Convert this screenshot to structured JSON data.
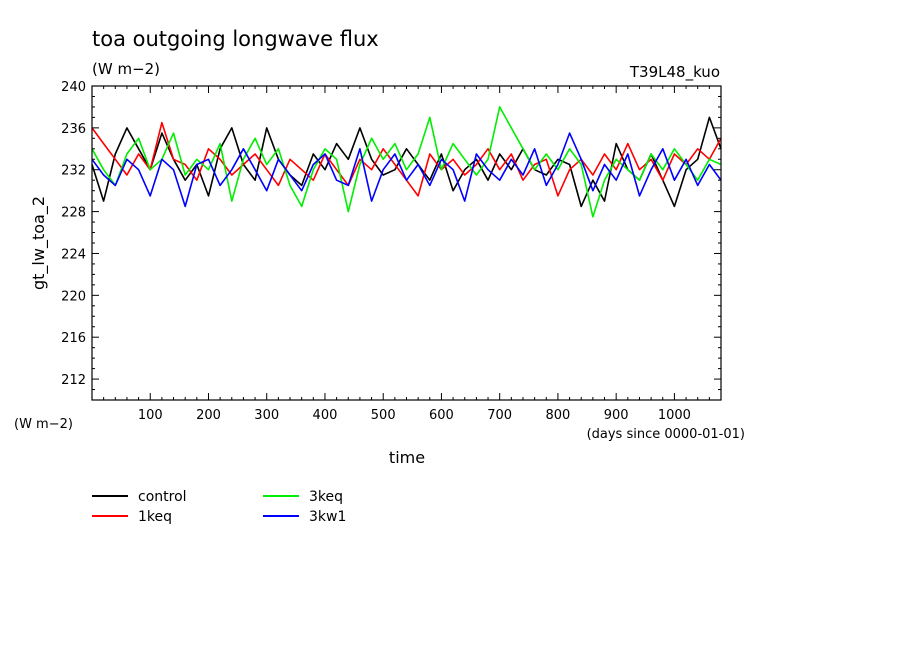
{
  "chart_data": {
    "type": "line",
    "title": "toa outgoing longwave flux",
    "title_units": "(W m−2)",
    "run_label": "T39L48_kuo",
    "xlabel": "time",
    "xlabel_units": "(days since 0000-01-01)",
    "ylabel": "gt_lw_toa_2",
    "ylabel_units": "(W m−2)",
    "xlim": [
      0,
      1080
    ],
    "ylim": [
      210,
      240
    ],
    "x_ticks": [
      100,
      200,
      300,
      400,
      500,
      600,
      700,
      800,
      900,
      1000
    ],
    "y_ticks": [
      212,
      216,
      220,
      224,
      228,
      232,
      236,
      240
    ],
    "legend_position": "bottom-left",
    "series": [
      {
        "name": "control",
        "color": "#000000",
        "x": [
          0,
          20,
          40,
          60,
          80,
          100,
          120,
          140,
          160,
          180,
          200,
          220,
          240,
          260,
          280,
          300,
          320,
          340,
          360,
          380,
          400,
          420,
          440,
          460,
          480,
          500,
          520,
          540,
          560,
          580,
          600,
          620,
          640,
          660,
          680,
          700,
          720,
          740,
          760,
          780,
          800,
          820,
          840,
          860,
          880,
          900,
          920,
          940,
          960,
          980,
          1000,
          1020,
          1040,
          1060,
          1080
        ],
        "y": [
          232.5,
          229.0,
          233.5,
          236.0,
          234.0,
          232.0,
          235.5,
          233.0,
          231.0,
          232.5,
          229.5,
          234.0,
          236.0,
          232.5,
          231.0,
          236.0,
          233.0,
          231.5,
          230.5,
          233.5,
          232.0,
          234.5,
          233.0,
          236.0,
          233.0,
          231.5,
          232.0,
          234.0,
          232.5,
          231.0,
          233.5,
          230.0,
          232.0,
          233.0,
          231.0,
          233.5,
          232.0,
          234.0,
          232.0,
          231.5,
          233.0,
          232.5,
          228.5,
          231.0,
          229.0,
          234.5,
          232.0,
          231.0,
          233.5,
          231.0,
          228.5,
          232.0,
          233.0,
          237.0,
          234.0
        ]
      },
      {
        "name": "1keq",
        "color": "#ff0000",
        "x": [
          0,
          20,
          40,
          60,
          80,
          100,
          120,
          140,
          160,
          180,
          200,
          220,
          240,
          260,
          280,
          300,
          320,
          340,
          360,
          380,
          400,
          420,
          440,
          460,
          480,
          500,
          520,
          540,
          560,
          580,
          600,
          620,
          640,
          660,
          680,
          700,
          720,
          740,
          760,
          780,
          800,
          820,
          840,
          860,
          880,
          900,
          920,
          940,
          960,
          980,
          1000,
          1020,
          1040,
          1060,
          1080
        ],
        "y": [
          236.0,
          234.5,
          233.0,
          231.5,
          233.5,
          232.0,
          236.5,
          233.0,
          232.5,
          231.0,
          234.0,
          233.0,
          231.5,
          232.5,
          233.5,
          232.0,
          230.5,
          233.0,
          232.0,
          231.0,
          233.5,
          232.0,
          230.5,
          233.0,
          232.0,
          234.0,
          232.5,
          231.0,
          229.5,
          233.5,
          232.0,
          233.0,
          231.5,
          232.5,
          234.0,
          232.0,
          233.5,
          231.0,
          232.5,
          233.0,
          229.5,
          232.0,
          233.0,
          231.5,
          233.5,
          232.0,
          234.5,
          232.0,
          233.0,
          231.0,
          233.5,
          232.5,
          234.0,
          233.0,
          235.0
        ]
      },
      {
        "name": "3keq",
        "color": "#00ee00",
        "x": [
          0,
          20,
          40,
          60,
          80,
          100,
          120,
          140,
          160,
          180,
          200,
          220,
          240,
          260,
          280,
          300,
          320,
          340,
          360,
          380,
          400,
          420,
          440,
          460,
          480,
          500,
          520,
          540,
          560,
          580,
          600,
          620,
          640,
          660,
          680,
          700,
          720,
          740,
          760,
          780,
          800,
          820,
          840,
          860,
          880,
          900,
          920,
          940,
          960,
          980,
          1000,
          1020,
          1040,
          1060,
          1080
        ],
        "y": [
          234.0,
          232.0,
          230.5,
          233.5,
          235.0,
          232.0,
          233.0,
          235.5,
          231.5,
          233.0,
          232.0,
          234.5,
          229.0,
          233.0,
          235.0,
          232.5,
          234.0,
          230.5,
          228.5,
          232.0,
          234.0,
          233.0,
          228.0,
          232.5,
          235.0,
          233.0,
          234.5,
          232.0,
          233.5,
          237.0,
          232.0,
          234.5,
          233.0,
          231.5,
          233.0,
          238.0,
          236.0,
          234.0,
          232.0,
          233.5,
          232.0,
          234.0,
          232.5,
          227.5,
          231.0,
          233.0,
          232.0,
          231.0,
          233.5,
          232.0,
          234.0,
          232.5,
          231.0,
          233.0,
          232.5
        ]
      },
      {
        "name": "3kw1",
        "color": "#0000ff",
        "x": [
          0,
          20,
          40,
          60,
          80,
          100,
          120,
          140,
          160,
          180,
          200,
          220,
          240,
          260,
          280,
          300,
          320,
          340,
          360,
          380,
          400,
          420,
          440,
          460,
          480,
          500,
          520,
          540,
          560,
          580,
          600,
          620,
          640,
          660,
          680,
          700,
          720,
          740,
          760,
          780,
          800,
          820,
          840,
          860,
          880,
          900,
          920,
          940,
          960,
          980,
          1000,
          1020,
          1040,
          1060,
          1080
        ],
        "y": [
          233.0,
          231.5,
          230.5,
          233.0,
          232.0,
          229.5,
          233.0,
          232.0,
          228.5,
          232.5,
          233.0,
          230.5,
          232.0,
          234.0,
          232.0,
          230.0,
          233.0,
          231.5,
          230.0,
          232.5,
          233.5,
          231.0,
          230.5,
          234.0,
          229.0,
          232.0,
          233.5,
          231.0,
          232.5,
          230.5,
          233.0,
          232.0,
          229.0,
          233.5,
          232.0,
          231.0,
          233.0,
          231.5,
          234.0,
          230.5,
          232.5,
          235.5,
          233.0,
          230.0,
          232.5,
          231.0,
          233.5,
          229.5,
          232.0,
          234.0,
          231.0,
          233.0,
          230.5,
          232.5,
          231.0
        ]
      }
    ]
  }
}
